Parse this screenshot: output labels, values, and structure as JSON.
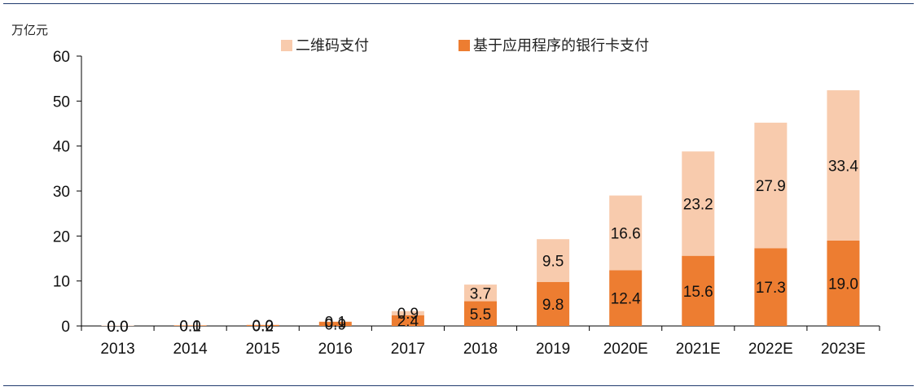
{
  "chart_data": {
    "type": "bar",
    "stacked": true,
    "unit_label": "万亿元",
    "categories": [
      "2013",
      "2014",
      "2015",
      "2016",
      "2017",
      "2018",
      "2019",
      "2020E",
      "2021E",
      "2022E",
      "2023E"
    ],
    "series": [
      {
        "name": "基于应用程序的银行卡支付",
        "color": "#ed7d31",
        "values": [
          0.0,
          0.1,
          0.2,
          0.9,
          2.4,
          5.5,
          9.8,
          12.4,
          15.6,
          17.3,
          19.0
        ],
        "labels": [
          "0.0",
          "0.1",
          "0.2",
          "0.9",
          "2.4",
          "5.5",
          "9.8",
          "12.4",
          "15.6",
          "17.3",
          "19.0"
        ]
      },
      {
        "name": "二维码支付",
        "color": "#f8cbad",
        "values": [
          0.0,
          0.0,
          0.0,
          0.1,
          0.9,
          3.7,
          9.5,
          16.6,
          23.2,
          27.9,
          33.4
        ],
        "labels": [
          "0.0",
          "0.0",
          "0.0",
          "0.1",
          "0.9",
          "3.7",
          "9.5",
          "16.6",
          "23.2",
          "27.9",
          "33.4"
        ]
      }
    ],
    "ylim": [
      0,
      60
    ],
    "yticks": [
      "0",
      "10",
      "20",
      "30",
      "40",
      "50",
      "60"
    ],
    "legend_order": [
      "二维码支付",
      "基于应用程序的银行卡支付"
    ],
    "legend_position": "top",
    "grid": false
  }
}
